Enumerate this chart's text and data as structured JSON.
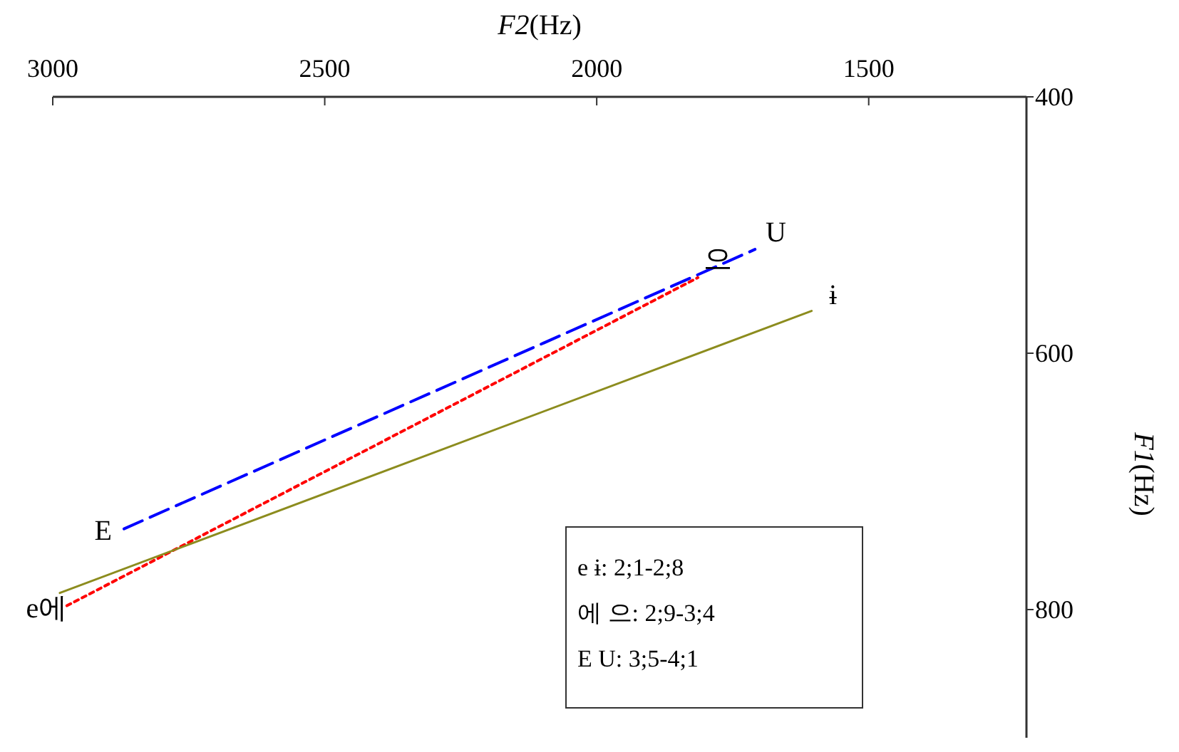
{
  "chart_data": {
    "type": "line",
    "xlabel": "F2(Hz)",
    "ylabel": "F1(Hz)",
    "xlim": [
      3000,
      1210
    ],
    "xticks": [
      3000,
      2500,
      2000,
      1500
    ],
    "ylim": [
      900,
      400
    ],
    "yticks": [
      400,
      600,
      800
    ],
    "grid": false,
    "series": [
      {
        "color": "#0000ff",
        "line_style": "dashed",
        "x": [
          2869,
          1709
        ],
        "values": [
          737,
          519
        ]
      },
      {
        "color": "#ff0000",
        "line_style": "dotted",
        "x": [
          2974,
          1814
        ],
        "values": [
          797,
          541
        ]
      },
      {
        "color": "#8c8c1e",
        "line_style": "solid",
        "x": [
          2987,
          1605
        ],
        "values": [
          787,
          567
        ]
      }
    ],
    "annotations": [
      {
        "text": "E",
        "x": 2869,
        "y": 737
      },
      {
        "text": "U",
        "x": 1709,
        "y": 519
      },
      {
        "text": "e에",
        "x": 2974,
        "y": 797
      },
      {
        "text": "으",
        "x": 1814,
        "y": 541
      },
      {
        "text": "ɨ",
        "x": 1605,
        "y": 567
      },
      "e ɨ: 2;1-2;8",
      "에 으: 2;9-3;4",
      "E U: 3;5-4;1"
    ]
  }
}
